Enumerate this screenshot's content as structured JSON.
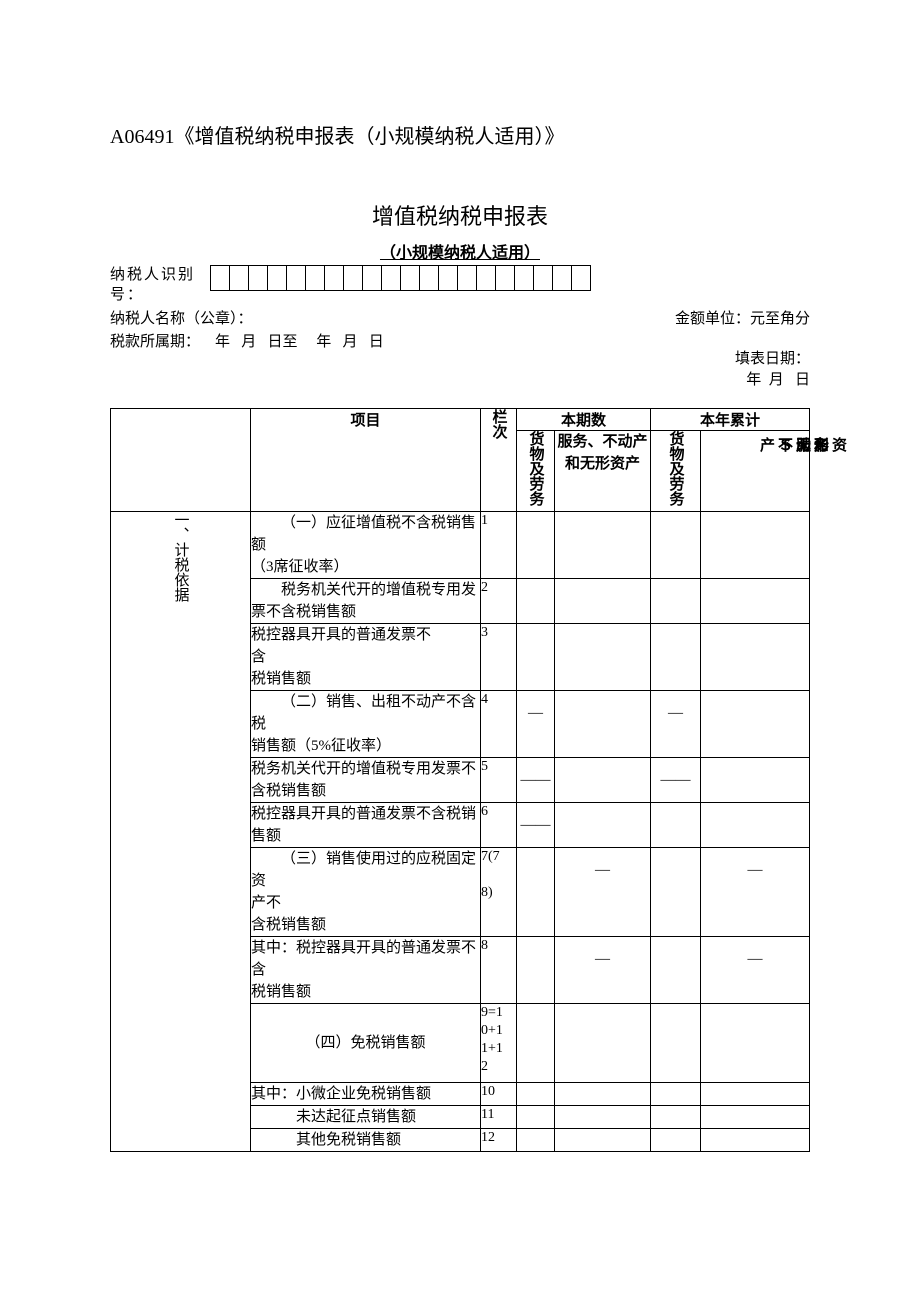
{
  "doc_title": "A06491《增值税纳税申报表（小规模纳税人适用）》",
  "form_title": "增值税纳税申报表",
  "form_subtitle": "（小规模纳税人适用）",
  "labels": {
    "taxpayer_id": "纳税人识别号：",
    "taxpayer_name": "纳税人名称（公章）：",
    "amount_unit": "金额单位：元至角分",
    "period_prefix": "税款所属期：",
    "period_from": "    年   月   日至",
    "period_to": "     年   月   日",
    "fill_date_label": "填表日期：",
    "fill_date_value": "   年  月   日"
  },
  "head": {
    "item": "项目",
    "line_no": "栏次",
    "current": "本期数",
    "ytd": "本年累计",
    "goods": "货物及劳务",
    "services": "服务、不动产和无形资产",
    "ytd_s1": "无Ｓ产",
    "ytd_s2": "形服不",
    "ytd_s3": "资务动",
    "ytd_s4": "和"
  },
  "section_label": "一、计税依据",
  "rows": [
    {
      "item_html": "<span class='item-indent'>（一）应征增值税不含税销售额</span>（3席征收率）",
      "ln": "1",
      "a": "",
      "b": "",
      "c": "",
      "d": ""
    },
    {
      "item_html": "<span class='item-indent'>税务机关代开的增值税专用发</span>票不含税销售额",
      "ln": "2",
      "a": "",
      "b": "",
      "c": "",
      "d": ""
    },
    {
      "item_html": "税控器具开具的普通发票不<br>含<br>税销售额",
      "ln": "3",
      "a": "",
      "b": "",
      "c": "",
      "d": ""
    },
    {
      "item_html": "<span class='item-indent'>（二）销售、出租不动产不含税</span>销售额（5%征收率）",
      "ln": "4",
      "a": "—",
      "b": "",
      "c": "—",
      "d": ""
    },
    {
      "item_html": "税务机关代开的增值税专用发票不含税销售额",
      "ln": "5",
      "a": "——",
      "b": "",
      "c": "——",
      "d": ""
    },
    {
      "item_html": "税控器具开具的普通发票不含税销售额",
      "ln": "6",
      "a": "——",
      "b": "",
      "c": "",
      "d": ""
    },
    {
      "item_html": "<span class='item-indent'>（三）销售使用过的应税固定资</span>产不<br>含税销售额",
      "ln": "7(7<br><br>8)",
      "a": "",
      "b": "—",
      "c": "",
      "d": "—"
    },
    {
      "item_html": "其中：税控器具开具的普通发票不含<br>税销售额",
      "ln": "8",
      "a": "",
      "b": "—",
      "c": "",
      "d": "—"
    },
    {
      "item_html": "<div class='item-center' style='padding:28px 0;'>（四）免税销售额</div>",
      "ln": "9=1<br>0+1<br>1+1<br>2",
      "a": "",
      "b": "",
      "c": "",
      "d": ""
    },
    {
      "item_html": "其中：小微企业免税销售额",
      "ln": "10",
      "a": "",
      "b": "",
      "c": "",
      "d": ""
    },
    {
      "item_html": "<span style='padding-left:3em;'>未达起征点销售额</span>",
      "ln": "11",
      "a": "",
      "b": "",
      "c": "",
      "d": ""
    },
    {
      "item_html": "<span style='padding-left:3em;'>其他免税销售额</span>",
      "ln": "12",
      "a": "",
      "b": "",
      "c": "",
      "d": ""
    }
  ],
  "id_box_count": 20,
  "colors": {
    "border": "#000000",
    "bg": "#ffffff"
  }
}
